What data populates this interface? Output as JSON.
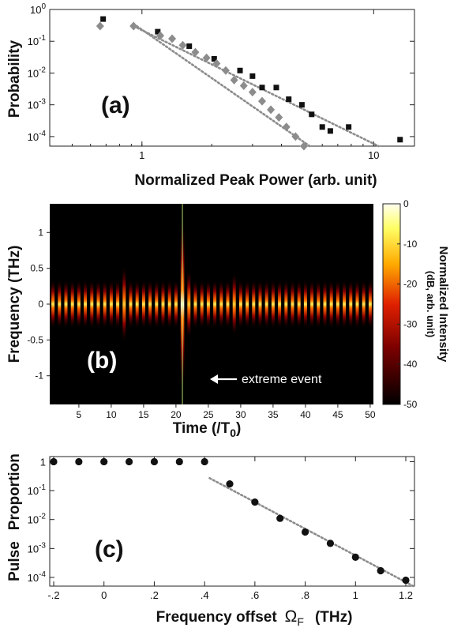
{
  "chart_data": [
    {
      "type": "scatter",
      "panel_label": "(a)",
      "xlabel": "Normalized Peak Power (arb. unit)",
      "ylabel": "Probability",
      "xscale": "log",
      "yscale": "log",
      "xlim": [
        0.4,
        15
      ],
      "ylim": [
        5e-05,
        1
      ],
      "x_ticks": [
        1,
        10
      ],
      "x_tick_labels": [
        "1",
        "10"
      ],
      "y_ticks": [
        1,
        0.1,
        0.01,
        0.001,
        0.0001
      ],
      "y_tick_labels": [
        "10^0",
        "10^-1",
        "10^-2",
        "10^-3",
        "10^-4"
      ],
      "series": [
        {
          "marker": "square",
          "color": "#111111",
          "x": [
            0.68,
            1.17,
            1.6,
            2.05,
            2.65,
            3.0,
            3.3,
            3.8,
            4.3,
            4.9,
            5.4,
            6.0,
            6.5,
            7.8,
            13.0
          ],
          "y": [
            0.5,
            0.2,
            0.07,
            0.028,
            0.012,
            0.008,
            0.0035,
            0.0035,
            0.0015,
            0.001,
            0.0005,
            0.0002,
            0.00015,
            0.0002,
            8e-05
          ]
        },
        {
          "marker": "diamond",
          "color": "#8c8c8c",
          "x": [
            0.66,
            0.92,
            1.2,
            1.35,
            1.5,
            1.7,
            1.9,
            2.1,
            2.3,
            2.5,
            2.75,
            3.0,
            3.3,
            3.6,
            3.9,
            4.2,
            4.6,
            5.0
          ],
          "y": [
            0.3,
            0.3,
            0.15,
            0.12,
            0.075,
            0.045,
            0.03,
            0.02,
            0.012,
            0.006,
            0.004,
            0.0025,
            0.0013,
            0.0007,
            0.0004,
            0.0002,
            0.0001,
            5e-05
          ]
        }
      ],
      "fit_lines": [
        {
          "style": "dotted",
          "color": "#8c8c8c",
          "x": [
            0.92,
            10.5
          ],
          "y": [
            0.3,
            5e-05
          ]
        },
        {
          "style": "dotted",
          "color": "#8c8c8c",
          "x": [
            0.95,
            5.3
          ],
          "y": [
            0.3,
            5e-05
          ]
        }
      ]
    },
    {
      "type": "heatmap",
      "panel_label": "(b)",
      "xlabel": "Time (/T0)",
      "xlabel_main": "Time (/T",
      "xlabel_sub": "0",
      "xlabel_close": ")",
      "ylabel": "Frequency (THz)",
      "xlim": [
        0.5,
        50.5
      ],
      "ylim": [
        -1.4,
        1.4
      ],
      "x_ticks": [
        5,
        10,
        15,
        20,
        25,
        30,
        35,
        40,
        45,
        50
      ],
      "y_ticks": [
        1,
        0.5,
        0,
        -0.5,
        -1
      ],
      "y_tick_labels": [
        "1",
        "0.5",
        "0",
        "-0.5",
        "-1"
      ],
      "colorbar": {
        "label": "Normalized Intensity",
        "unit": "(dB,   arb. unit)",
        "range": [
          -50,
          0
        ],
        "ticks": [
          0,
          -10,
          -20,
          -30,
          -40,
          -50
        ]
      },
      "pulse_count": 50,
      "pulse_peak_db": -2,
      "pulse_bandwidth_thz": 0.35,
      "extreme_event": {
        "time": 21,
        "bandwidth_thz": 1.25,
        "label": "extreme event"
      },
      "side_events": [
        {
          "time": 12,
          "bandwidth_thz": 0.55
        },
        {
          "time": 22,
          "bandwidth_thz": 0.5
        },
        {
          "time": 29,
          "bandwidth_thz": 0.45
        }
      ]
    },
    {
      "type": "scatter",
      "panel_label": "(c)",
      "xlabel": "Frequency offset  ΩF  (THz)",
      "xlabel_main": "Frequency offset",
      "xlabel_symbol": "Ω",
      "xlabel_sub": "F",
      "xlabel_unit": "(THz)",
      "ylabel": "Pulse  Proportion",
      "ylabel_word1": "Pulse",
      "ylabel_word2": "Proportion",
      "yscale": "log",
      "xlim": [
        -0.2,
        1.3
      ],
      "ylim": [
        5e-05,
        1.5
      ],
      "x_ticks": [
        -0.2,
        0,
        0.2,
        0.4,
        0.6,
        0.8,
        1,
        1.2
      ],
      "x_tick_labels": [
        "-.2",
        "0",
        ".2",
        ".4",
        ".6",
        ".8",
        "1",
        "1.2"
      ],
      "y_ticks": [
        1,
        0.1,
        0.01,
        0.001,
        0.0001
      ],
      "y_tick_labels": [
        "1",
        "10^-1",
        "10^-2",
        "10^-3",
        "10^-4"
      ],
      "series": [
        {
          "marker": "circle",
          "color": "#111111",
          "x": [
            -0.2,
            -0.1,
            0,
            0.1,
            0.2,
            0.3,
            0.4,
            0.5,
            0.6,
            0.7,
            0.8,
            0.9,
            1.0,
            1.1,
            1.2
          ],
          "y": [
            1,
            1,
            1,
            1,
            1,
            1,
            1,
            0.17,
            0.04,
            0.011,
            0.0037,
            0.0015,
            0.0005,
            0.00017,
            8e-05
          ]
        }
      ],
      "fit_lines": [
        {
          "style": "dotted",
          "color": "#8c8c8c",
          "x": [
            0.42,
            1.23
          ],
          "y": [
            0.27,
            5e-05
          ]
        }
      ]
    }
  ]
}
